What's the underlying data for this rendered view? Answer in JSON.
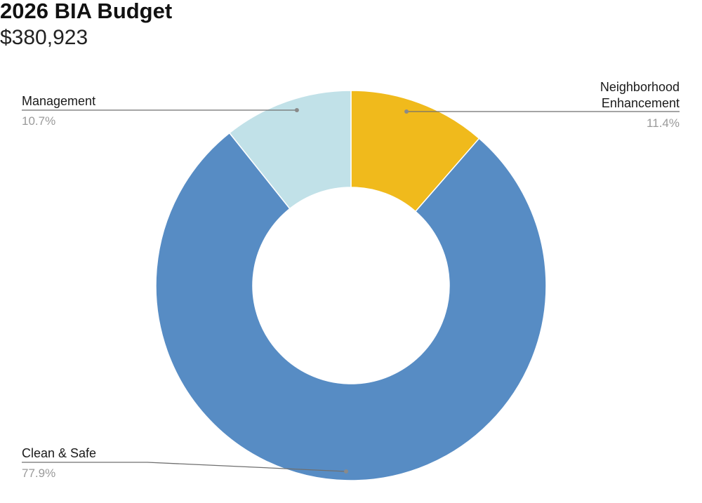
{
  "header": {
    "title": "2026 BIA Budget",
    "subtitle": "$380,923"
  },
  "chart_data": {
    "type": "pie",
    "donut": true,
    "title": "2026 BIA Budget",
    "subtitle": "$380,923",
    "legend": "none",
    "slices": [
      {
        "key": "neighborhood",
        "name": "Neighborhood Enhancement",
        "name_lines": [
          "Neighborhood",
          "Enhancement"
        ],
        "value": 11.4,
        "label": "11.4%",
        "color": "#F0BA1C"
      },
      {
        "key": "clean",
        "name": "Clean & Safe",
        "name_lines": [
          "Clean & Safe"
        ],
        "value": 77.9,
        "label": "77.9%",
        "color": "#578CC4"
      },
      {
        "key": "management",
        "name": "Management",
        "name_lines": [
          "Management"
        ],
        "value": 10.7,
        "label": "10.7%",
        "color": "#C1E1E8"
      }
    ]
  }
}
